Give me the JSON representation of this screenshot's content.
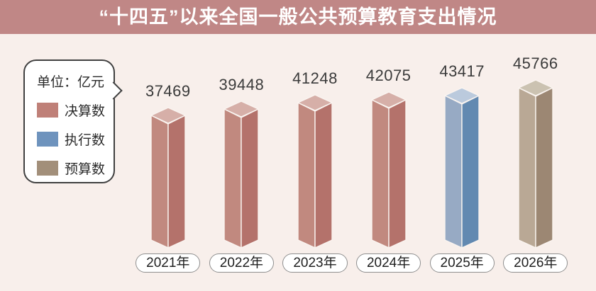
{
  "title": "“十四五”以来全国一般公共预算教育支出情况",
  "legend": {
    "unit_label": "单位：亿元",
    "items": [
      {
        "label": "决算数",
        "color": "#bf8078"
      },
      {
        "label": "执行数",
        "color": "#6e93bd"
      },
      {
        "label": "预算数",
        "color": "#a28f7a"
      }
    ]
  },
  "chart_data": {
    "type": "bar",
    "title": "“十四五”以来全国一般公共预算教育支出情况",
    "unit_label": "单位：亿元",
    "categories": [
      "2021年",
      "2022年",
      "2023年",
      "2024年",
      "2025年",
      "2026年"
    ],
    "values": [
      37469,
      39448,
      41248,
      42075,
      43417,
      45766
    ],
    "bar_series": [
      "决算数",
      "决算数",
      "决算数",
      "决算数",
      "执行数",
      "预算数"
    ],
    "series": [
      {
        "name": "决算数",
        "values": [
          37469,
          39448,
          41248,
          42075,
          null,
          null
        ]
      },
      {
        "name": "执行数",
        "values": [
          null,
          null,
          null,
          null,
          43417,
          null
        ]
      },
      {
        "name": "预算数",
        "values": [
          null,
          null,
          null,
          null,
          null,
          45766
        ]
      }
    ],
    "ylim": [
      0,
      48000
    ],
    "grid": false,
    "legend_position": "left",
    "data_labels": true
  },
  "colors": {
    "background": "#f8efeb",
    "title_band": "#c08786",
    "title_text": "#ffffff",
    "seam": "#faf4f0",
    "series_colors": {
      "决算数": {
        "top": "#d6afa8",
        "left": "#c1897f",
        "right": "#b4726b"
      },
      "执行数": {
        "top": "#bbcadd",
        "left": "#97aac4",
        "right": "#6289b1"
      },
      "预算数": {
        "top": "#cbc2b1",
        "left": "#b9a895",
        "right": "#9c8773"
      }
    }
  }
}
